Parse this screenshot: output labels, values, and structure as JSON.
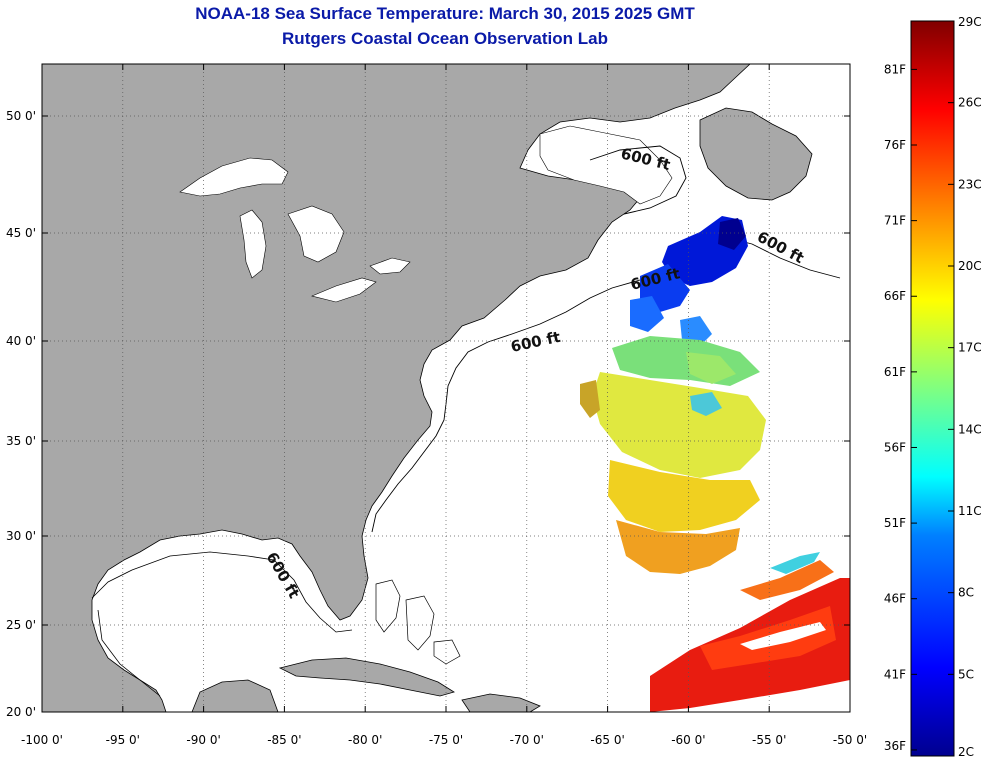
{
  "title": {
    "line1": "NOAA-18 Sea Surface Temperature:  March 30, 2015 2025 GMT",
    "line2": "Rutgers Coastal Ocean Observation Lab"
  },
  "map": {
    "lat_labels": [
      "50 0'",
      "45 0'",
      "40 0'",
      "35 0'",
      "30 0'",
      "25 0'",
      "20 0'"
    ],
    "lon_labels": [
      "-100 0'",
      "-95 0'",
      "-90 0'",
      "-85 0'",
      "-80 0'",
      "-75 0'",
      "-70 0'",
      "-65 0'",
      "-60 0'",
      "-55 0'",
      "-50 0'"
    ],
    "isobath_label": "600 ft",
    "colors": {
      "land": "#a8a8a8",
      "ocean": "#ffffff",
      "grid": "#555555"
    }
  },
  "colorbar": {
    "celsius": [
      "29C",
      "26C",
      "23C",
      "20C",
      "17C",
      "14C",
      "11C",
      "8C",
      "5C",
      "2C"
    ],
    "fahrenheit": [
      "81F",
      "76F",
      "71F",
      "66F",
      "61F",
      "56F",
      "51F",
      "46F",
      "41F",
      "36F"
    ],
    "range_c": [
      2,
      29
    ],
    "palette": [
      "#00008f",
      "#0000ff",
      "#0080ff",
      "#00ffff",
      "#80ff80",
      "#ffff00",
      "#ff8000",
      "#ff0000",
      "#800000"
    ]
  }
}
